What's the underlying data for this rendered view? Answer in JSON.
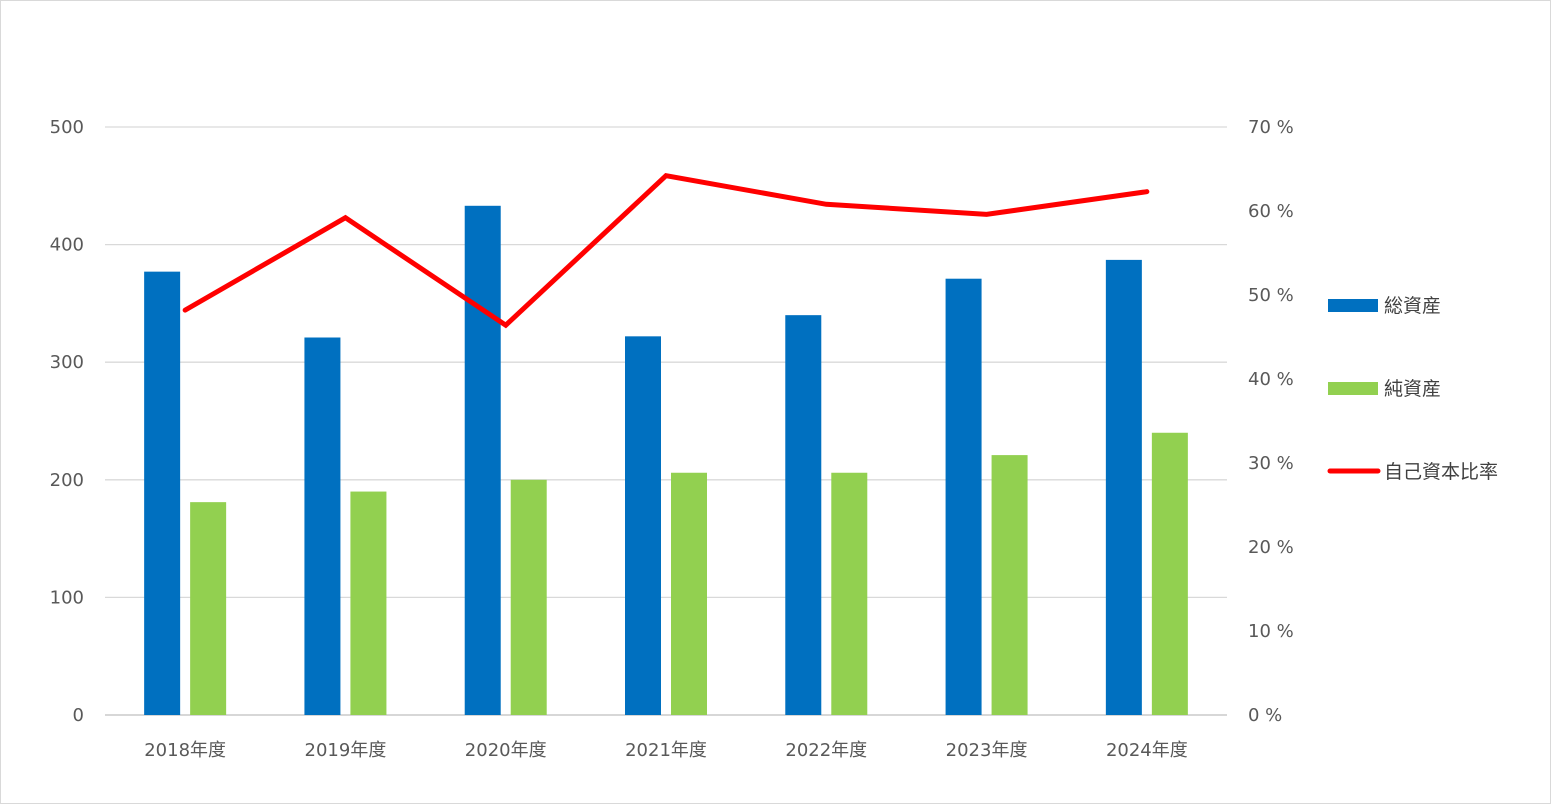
{
  "chart_data": {
    "type": "bar",
    "categories": [
      "2018年度",
      "2019年度",
      "2020年度",
      "2021年度",
      "2022年度",
      "2023年度",
      "2024年度"
    ],
    "series": [
      {
        "name": "総資産",
        "kind": "bar",
        "axis": "left",
        "color": "#0070c0",
        "values": [
          377,
          321,
          433,
          322,
          340,
          371,
          387
        ]
      },
      {
        "name": "純資産",
        "kind": "bar",
        "axis": "left",
        "color": "#92d050",
        "values": [
          181,
          190,
          200,
          206,
          206,
          221,
          240
        ]
      },
      {
        "name": "自己資本比率",
        "kind": "line",
        "axis": "right",
        "color": "#ff0000",
        "values": [
          48.2,
          59.2,
          46.4,
          64.2,
          60.8,
          59.6,
          62.3
        ]
      }
    ],
    "y_left": {
      "ylim": [
        0,
        500
      ],
      "ticks": [
        0,
        100,
        200,
        300,
        400,
        500
      ],
      "tick_labels": [
        "0",
        "100",
        "200",
        "300",
        "400",
        "500"
      ]
    },
    "y_right": {
      "ylim": [
        0,
        70
      ],
      "ticks": [
        0,
        10,
        20,
        30,
        40,
        50,
        60,
        70
      ],
      "tick_labels": [
        "0 %",
        "10 %",
        "20 %",
        "30 %",
        "40 %",
        "50 %",
        "60 %",
        "70 %"
      ]
    },
    "grid": true,
    "legend": "right"
  }
}
